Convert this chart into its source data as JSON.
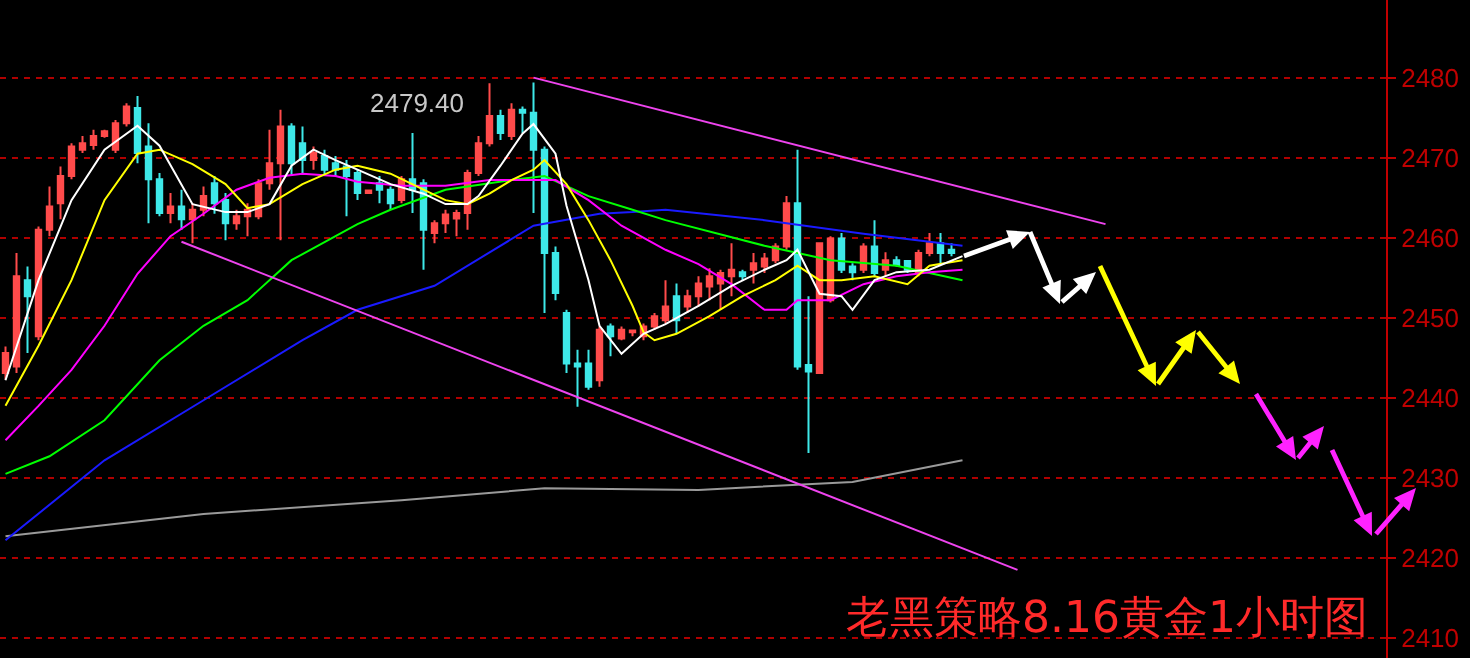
{
  "chart_data": {
    "type": "candlestick",
    "title": "老黑策略8.16黄金1小时图",
    "categories": [
      null,
      null,
      null,
      null,
      null,
      null,
      null,
      null,
      null,
      null,
      null,
      null,
      null,
      null,
      null,
      null,
      null,
      null,
      null,
      null,
      null,
      null,
      null,
      null,
      null,
      null,
      null,
      null,
      null,
      null,
      null,
      null,
      null,
      null,
      null,
      null,
      null,
      null,
      null,
      null,
      null,
      null,
      null,
      null,
      null,
      null,
      null,
      null,
      null,
      null,
      null,
      null,
      null,
      null,
      null,
      null,
      null,
      null,
      null,
      null,
      null,
      null,
      null,
      null,
      null,
      null,
      null,
      null,
      null,
      null,
      null,
      null,
      null,
      null,
      null,
      null,
      null,
      null,
      null,
      null,
      null,
      null,
      null,
      null,
      null,
      null,
      null,
      null,
      null,
      null,
      null,
      null,
      null,
      null,
      null,
      null,
      null,
      null,
      null,
      null,
      null,
      null,
      null,
      null,
      null,
      null,
      null,
      null,
      null,
      null,
      null,
      null,
      null,
      null,
      null,
      null,
      null,
      null,
      null,
      null,
      null,
      null,
      null,
      null,
      null,
      null
    ],
    "colors": [
      "#ff4b4b",
      "#ff4b4b",
      "#3ee8e8",
      "#ff4b4b",
      "#ff4b4b",
      "#ff4b4b",
      "#ff4b4b",
      "#ff4b4b",
      "#ff4b4b",
      "#ff4b4b",
      "#ff4b4b",
      "#ff4b4b",
      "#3ee8e8",
      "#3ee8e8",
      "#3ee8e8",
      "#ff4b4b",
      "#3ee8e8",
      "#ff4b4b",
      "#ff4b4b",
      "#3ee8e8",
      "#3ee8e8",
      "#ff4b4b",
      "#ff4b4b",
      "#ff4b4b",
      "#ff4b4b",
      "#ff4b4b",
      "#3ee8e8",
      "#3ee8e8",
      "#ff4b4b",
      "#3ee8e8",
      "#3ee8e8",
      "#3ee8e8",
      "#3ee8e8",
      "#ff4b4b",
      "#3ee8e8",
      "#3ee8e8",
      "#ff4b4b",
      "#3ee8e8",
      "#3ee8e8",
      "#ff4b4b",
      "#ff4b4b",
      "#ff4b4b",
      "#ff4b4b",
      "#ff4b4b",
      "#ff4b4b",
      "#3ee8e8",
      "#ff4b4b",
      "#3ee8e8",
      "#3ee8e8",
      "#3ee8e8",
      "#3ee8e8",
      "#3ee8e8",
      "#3ee8e8",
      "#3ee8e8",
      "#ff4b4b",
      "#3ee8e8",
      "#ff4b4b",
      "#ff4b4b",
      "#ff4b4b",
      "#ff4b4b",
      "#ff4b4b",
      "#3ee8e8",
      "#ff4b4b",
      "#ff4b4b",
      "#ff4b4b",
      "#ff4b4b",
      "#ff4b4b",
      "#3ee8e8",
      "#ff4b4b",
      "#ff4b4b",
      "#ff4b4b",
      "#ff4b4b",
      "#3ee8e8",
      "#3ee8e8",
      "#ff4b4b",
      "#ff4b4b",
      "#3ee8e8",
      "#3ee8e8",
      "#ff4b4b",
      "#3ee8e8",
      "#ff4b4b",
      "#3ee8e8",
      "#3ee8e8",
      "#ff4b4b",
      "#ff4b4b",
      "#3ee8e8",
      "#3ee8e8",
      null,
      null,
      null,
      null,
      null,
      null,
      null,
      null,
      null,
      null,
      null,
      null,
      null,
      null,
      null,
      null,
      null,
      null,
      null,
      null,
      null,
      null,
      null,
      null,
      null,
      null,
      null,
      null,
      null,
      null,
      null,
      null,
      null,
      null,
      null,
      null,
      null,
      null,
      null
    ],
    "ohlc": [
      [
        2443.1,
        2446.4,
        2442.3,
        2445.6
      ],
      [
        2443.9,
        2458.1,
        2443.1,
        2455.2
      ],
      [
        2454.7,
        2456.4,
        2445.6,
        2452.7
      ],
      [
        2447.7,
        2461.4,
        2447.2,
        2461
      ],
      [
        2461,
        2466.4,
        2460.2,
        2463.9
      ],
      [
        2464.3,
        2468.9,
        2462.3,
        2467.7
      ],
      [
        2467.7,
        2471.8,
        2467.3,
        2471.4
      ],
      [
        2471,
        2472.7,
        2470.6,
        2471.8
      ],
      [
        2471.6,
        2473.5,
        2471,
        2472.7
      ],
      [
        2472.7,
        2473.5,
        2472.5,
        2473.3
      ],
      [
        2471,
        2474.7,
        2470.6,
        2474.3
      ],
      [
        2474.3,
        2476.8,
        2473.9,
        2476.4
      ],
      [
        2476.2,
        2477.7,
        2469.3,
        2470.6
      ],
      [
        2471.4,
        2474.3,
        2461.8,
        2467.3
      ],
      [
        2467.3,
        2468.1,
        2462.7,
        2463.1
      ],
      [
        2463.1,
        2465.6,
        2461.8,
        2463.9
      ],
      [
        2463.9,
        2466,
        2461,
        2462.3
      ],
      [
        2462.3,
        2464.3,
        2459.3,
        2463.5
      ],
      [
        2463.5,
        2466.4,
        2462.7,
        2465.2
      ],
      [
        2466.8,
        2467.7,
        2463,
        2464.3
      ],
      [
        2464.7,
        2465.6,
        2459.7,
        2461.8
      ],
      [
        2461.8,
        2463.5,
        2461,
        2462.7
      ],
      [
        2462.7,
        2464.3,
        2460.2,
        2463.5
      ],
      [
        2462.7,
        2467.3,
        2462.3,
        2466.8
      ],
      [
        2466.8,
        2473.5,
        2466,
        2469.3
      ],
      [
        2469.3,
        2476,
        2459.7,
        2473.9
      ],
      [
        2473.9,
        2474.3,
        2467.7,
        2469.3
      ],
      [
        2471.8,
        2473.9,
        2468.1,
        2469.7
      ],
      [
        2469.7,
        2471.4,
        2468.5,
        2470.6
      ],
      [
        2470.2,
        2471,
        2467.7,
        2468.5
      ],
      [
        2469.3,
        2470.2,
        2467.7,
        2468.5
      ],
      [
        2468.9,
        2469.7,
        2462.7,
        2467.7
      ],
      [
        2468.1,
        2468.5,
        2464.7,
        2465.6
      ],
      [
        2465.6,
        2466,
        2465.5,
        2465.9
      ],
      [
        2466.8,
        2467.7,
        2464.3,
        2466
      ],
      [
        2466,
        2466.4,
        2463.5,
        2464.3
      ],
      [
        2464.7,
        2467.7,
        2464.3,
        2467.3
      ],
      [
        2467.3,
        2473.1,
        2463.1,
        2466
      ],
      [
        2466.8,
        2467.3,
        2456,
        2461
      ],
      [
        2460.6,
        2462.2,
        2459.3,
        2461.8
      ],
      [
        2461.8,
        2463.5,
        2460.6,
        2462.9
      ],
      [
        2462.4,
        2463.5,
        2460.2,
        2463.1
      ],
      [
        2463.1,
        2468.5,
        2461,
        2468.1
      ],
      [
        2468.1,
        2472.7,
        2467.7,
        2471.8
      ],
      [
        2471.8,
        2479.3,
        2471.4,
        2475.2
      ],
      [
        2475.2,
        2476,
        2472.2,
        2473.1
      ],
      [
        2472.7,
        2476.8,
        2472.2,
        2476
      ],
      [
        2476,
        2476.4,
        2473.1,
        2475.6
      ],
      [
        2475.6,
        2479.4,
        2463.1,
        2471
      ],
      [
        2471,
        2471.4,
        2450.6,
        2458.1
      ],
      [
        2458.1,
        2458.9,
        2452.2,
        2453.1
      ],
      [
        2450.6,
        2451,
        2443.1,
        2444.3
      ],
      [
        2444.3,
        2446,
        2438.9,
        2443.9
      ],
      [
        2444.3,
        2446,
        2441,
        2441.4
      ],
      [
        2442.2,
        2448.9,
        2441.4,
        2448.5
      ],
      [
        2448.9,
        2449.3,
        2445.2,
        2447.7
      ],
      [
        2447.4,
        2448.9,
        2447.2,
        2448.5
      ],
      [
        2448.2,
        2448.5,
        2447.7,
        2448.4
      ],
      [
        2447.7,
        2449.3,
        2447.2,
        2448.9
      ],
      [
        2448.9,
        2450.6,
        2448.5,
        2450.2
      ],
      [
        2449.7,
        2454.7,
        2449.3,
        2451.4
      ],
      [
        2452.7,
        2454.3,
        2448.1,
        2449.7
      ],
      [
        2451.4,
        2453.5,
        2450.6,
        2452.7
      ],
      [
        2452.7,
        2455.2,
        2451.4,
        2454.3
      ],
      [
        2453.9,
        2456.2,
        2452.2,
        2455.2
      ],
      [
        2454.3,
        2456,
        2451,
        2455.6
      ],
      [
        2455.2,
        2459.3,
        2452.7,
        2456
      ],
      [
        2455.7,
        2456,
        2454.7,
        2455.2
      ],
      [
        2456,
        2458.1,
        2454.3,
        2456.8
      ],
      [
        2456.4,
        2458.1,
        2455.6,
        2457.4
      ],
      [
        2457.2,
        2459.3,
        2456.8,
        2458.9
      ],
      [
        2458.9,
        2465.2,
        2458.5,
        2464.3
      ],
      [
        2464.3,
        2471,
        2443.5,
        2443.9
      ],
      [
        2444.1,
        2452.7,
        2433.1,
        2443.3
      ],
      [
        2443.1,
        2459.3,
        2443.1,
        2459.3
      ],
      [
        2452.2,
        2460.2,
        2451.9,
        2459.9
      ],
      [
        2459.9,
        2460.6,
        2455.6,
        2456
      ],
      [
        2456.4,
        2456.8,
        2454.7,
        2455.7
      ],
      [
        2456,
        2459.3,
        2455.6,
        2458.9
      ],
      [
        2458.9,
        2462.2,
        2455.2,
        2455.6
      ],
      [
        2456,
        2458.2,
        2455.2,
        2457.2
      ],
      [
        2457.2,
        2457.7,
        2456.4,
        2456.6
      ],
      [
        2457.1,
        2457.2,
        2455.6,
        2456
      ],
      [
        2455.7,
        2458.5,
        2455.2,
        2458.1
      ],
      [
        2458.1,
        2460.6,
        2457.7,
        2459.3
      ],
      [
        2459.3,
        2460.6,
        2456.8,
        2458.1
      ],
      [
        2458.5,
        2459.3,
        2457.7,
        2458.1
      ],
      null,
      null,
      null,
      null,
      null,
      null,
      null,
      null,
      null,
      null,
      null,
      null,
      null,
      null,
      null,
      null,
      null,
      null,
      null,
      null,
      null,
      null,
      null,
      null,
      null,
      null,
      null,
      null,
      null,
      null,
      null,
      null,
      null,
      null,
      null,
      null,
      null,
      null,
      null
    ],
    "series": [
      {
        "type": "line",
        "color": "#9a9a9a",
        "values": [
          2422.7,
          null,
          null,
          null,
          null,
          null,
          null,
          null,
          null,
          null,
          null,
          null,
          null,
          null,
          null,
          null,
          null,
          null,
          2425.5,
          null,
          null,
          null,
          null,
          null,
          null,
          null,
          null,
          null,
          null,
          null,
          null,
          null,
          null,
          null,
          null,
          null,
          2427.2,
          null,
          null,
          null,
          null,
          null,
          null,
          null,
          null,
          null,
          null,
          null,
          null,
          2428.7,
          null,
          null,
          null,
          null,
          null,
          null,
          null,
          null,
          null,
          null,
          null,
          null,
          null,
          2428.5,
          null,
          null,
          null,
          null,
          null,
          null,
          null,
          null,
          null,
          null,
          null,
          null,
          null,
          2429.5,
          null,
          null,
          null,
          null,
          null,
          null,
          null,
          null,
          null,
          2432.2,
          null,
          null,
          null,
          null,
          null,
          null,
          null,
          null,
          null,
          null,
          null,
          null,
          null,
          null,
          null,
          null,
          null,
          null,
          null,
          null,
          null,
          null,
          null,
          null,
          null,
          null,
          null,
          null,
          null,
          null,
          null,
          null,
          null,
          null,
          null,
          null,
          null,
          null
        ]
      },
      {
        "type": "line",
        "color": "#1a1aff",
        "values": [
          2422.2,
          null,
          null,
          null,
          null,
          null,
          null,
          null,
          null,
          2432.2,
          null,
          null,
          null,
          null,
          null,
          null,
          null,
          null,
          2439.7,
          null,
          null,
          null,
          null,
          null,
          null,
          null,
          null,
          2447.2,
          null,
          null,
          null,
          null,
          2451,
          null,
          null,
          null,
          null,
          null,
          null,
          2454,
          null,
          null,
          null,
          null,
          null,
          null,
          null,
          null,
          2461.5,
          null,
          null,
          null,
          null,
          null,
          2463,
          null,
          null,
          2463.2,
          null,
          null,
          2463.5,
          null,
          null,
          null,
          null,
          null,
          null,
          null,
          null,
          2462.2,
          null,
          null,
          null,
          null,
          null,
          null,
          null,
          null,
          2460.5,
          null,
          null,
          null,
          null,
          null,
          null,
          null,
          null,
          2459,
          null,
          null,
          null,
          null,
          null,
          null,
          null,
          null,
          null,
          null,
          null,
          null,
          null,
          null,
          null,
          null,
          null,
          null,
          null,
          null,
          null,
          null,
          null,
          null,
          null,
          null,
          null,
          null,
          null,
          null,
          null,
          null,
          null,
          null,
          null,
          null,
          null,
          null
        ]
      },
      {
        "type": "line",
        "color": "#00ff00",
        "values": [
          2430.5,
          null,
          null,
          null,
          2432.7,
          null,
          null,
          null,
          null,
          2437.2,
          null,
          null,
          null,
          null,
          2444.7,
          null,
          null,
          null,
          2449,
          null,
          null,
          null,
          2452.2,
          null,
          null,
          null,
          2457.2,
          null,
          null,
          null,
          null,
          null,
          2461.7,
          null,
          null,
          2463.5,
          null,
          null,
          null,
          null,
          2466,
          null,
          null,
          null,
          null,
          null,
          2467.2,
          null,
          null,
          2467.7,
          null,
          null,
          null,
          2465.2,
          null,
          null,
          null,
          2463.5,
          null,
          null,
          2462.2,
          null,
          null,
          null,
          null,
          null,
          null,
          null,
          null,
          2459,
          null,
          null,
          null,
          null,
          null,
          2457.2,
          null,
          null,
          null,
          null,
          null,
          2456.5,
          null,
          null,
          null,
          null,
          null,
          2454.7,
          null,
          null,
          null,
          null,
          null,
          null,
          null,
          null,
          null,
          null,
          null,
          null,
          null,
          null,
          null,
          null,
          null,
          null,
          null,
          null,
          null,
          null,
          null,
          null,
          null,
          null,
          null,
          null,
          null,
          null,
          null,
          null,
          null,
          null,
          null,
          null,
          null,
          null
        ]
      },
      {
        "type": "line",
        "color": "#ff00ff",
        "values": [
          2434.7,
          null,
          null,
          2439,
          null,
          null,
          2443.5,
          null,
          null,
          2449,
          null,
          null,
          2455.5,
          null,
          null,
          2460.2,
          null,
          null,
          2463,
          null,
          null,
          2466,
          null,
          null,
          2467.5,
          null,
          null,
          2468,
          null,
          null,
          2467.7,
          null,
          2467,
          null,
          null,
          null,
          2466.5,
          null,
          null,
          null,
          2466.5,
          null,
          null,
          null,
          2467.2,
          null,
          null,
          null,
          2467.2,
          null,
          2467.2,
          null,
          null,
          2464.7,
          null,
          null,
          2461.5,
          null,
          null,
          null,
          2458.5,
          null,
          null,
          2456.7,
          null,
          null,
          2454.2,
          null,
          null,
          2451,
          null,
          2451,
          2452.2,
          null,
          null,
          2452.2,
          null,
          null,
          2454.2,
          null,
          null,
          2455.2,
          null,
          null,
          2455.7,
          null,
          null,
          2456,
          null,
          null,
          null,
          null,
          null,
          null,
          null,
          null,
          null,
          null,
          null,
          null,
          null,
          null,
          null,
          null,
          null,
          null,
          null,
          null,
          null,
          null,
          null,
          null,
          null,
          null,
          null,
          null,
          null,
          null,
          null,
          null,
          null,
          null,
          null,
          null,
          null,
          null
        ]
      },
      {
        "type": "line",
        "color": "#ffff00",
        "values": [
          2439,
          null,
          null,
          2446.5,
          null,
          null,
          2454.7,
          null,
          null,
          2464.7,
          null,
          null,
          2470.5,
          null,
          2471,
          null,
          null,
          2469.2,
          null,
          null,
          2466.7,
          null,
          2463.7,
          null,
          2464.2,
          null,
          null,
          2466.7,
          null,
          null,
          2468.5,
          null,
          2469,
          null,
          null,
          2468,
          null,
          null,
          2466,
          null,
          2464.7,
          null,
          2464.2,
          null,
          2465.5,
          null,
          2467.2,
          null,
          2468.5,
          2469.7,
          null,
          2466.7,
          null,
          2462.2,
          null,
          2457.2,
          null,
          2451.5,
          2448.2,
          2447.2,
          null,
          2448,
          null,
          null,
          2450.2,
          null,
          null,
          2452.7,
          null,
          null,
          2454.7,
          null,
          2456.5,
          null,
          2454.7,
          null,
          2454.7,
          null,
          null,
          2455.2,
          null,
          null,
          2454.2,
          null,
          2456.5,
          null,
          null,
          2457.2,
          null,
          null,
          null,
          null,
          null,
          null,
          null,
          null,
          null,
          null,
          null,
          null,
          null,
          null,
          null,
          null,
          null,
          null,
          null,
          null,
          null,
          null,
          null,
          null,
          null,
          null,
          null,
          null,
          null,
          null,
          null,
          null,
          null,
          null,
          null,
          null,
          null,
          null
        ]
      },
      {
        "type": "line",
        "color": "#ffffff",
        "values": [
          2442.2,
          null,
          null,
          2454.7,
          null,
          null,
          2464.7,
          null,
          null,
          2471,
          null,
          null,
          2474,
          null,
          2471.5,
          null,
          null,
          2464.2,
          null,
          null,
          2463.2,
          null,
          2463.2,
          null,
          2464.2,
          null,
          2469,
          null,
          2471,
          null,
          2469.7,
          null,
          2468.5,
          null,
          null,
          2466.7,
          null,
          null,
          2465.5,
          null,
          2464.2,
          null,
          2464.2,
          2465.2,
          null,
          2469,
          null,
          2473,
          2474.2,
          null,
          2470.5,
          2464,
          null,
          2454.7,
          2449,
          null,
          2445.5,
          null,
          2448,
          null,
          2449.2,
          null,
          null,
          2451.5,
          null,
          null,
          2454,
          null,
          null,
          2456,
          null,
          2457.2,
          2458.5,
          null,
          2453,
          null,
          2452.7,
          2451,
          null,
          2454.7,
          null,
          2455.7,
          null,
          null,
          2456,
          null,
          null,
          2457.7,
          null,
          null,
          null,
          null,
          null,
          null,
          null,
          null,
          null,
          null,
          null,
          null,
          null,
          null,
          null,
          null,
          null,
          null,
          null,
          null,
          null,
          null,
          null,
          null,
          null,
          null,
          null,
          null,
          null,
          null,
          null,
          null,
          null,
          null,
          null,
          null,
          null,
          null
        ]
      },
      {
        "type": "line",
        "color": "#ee44ee",
        "values": [
          null,
          null,
          null,
          null,
          null,
          null,
          null,
          null,
          null,
          null,
          null,
          null,
          null,
          null,
          null,
          null,
          null,
          null,
          null,
          null,
          null,
          null,
          null,
          null,
          null,
          null,
          null,
          null,
          null,
          null,
          null,
          null,
          null,
          null,
          null,
          null,
          null,
          null,
          null,
          null,
          null,
          null,
          null,
          null,
          null,
          null,
          null,
          null,
          2480,
          null,
          null,
          null,
          null,
          null,
          null,
          null,
          null,
          null,
          null,
          null,
          null,
          null,
          null,
          null,
          null,
          null,
          null,
          null,
          null,
          null,
          null,
          null,
          null,
          null,
          null,
          null,
          null,
          null,
          null,
          null,
          null,
          null,
          null,
          null,
          null,
          null,
          null,
          null,
          null,
          null,
          null,
          null,
          null,
          null,
          null,
          null,
          null,
          null,
          null,
          null,
          2461.7,
          null,
          null,
          null,
          null,
          null,
          null,
          null,
          null,
          null,
          null,
          null,
          null,
          null,
          null,
          null,
          null,
          null,
          null,
          null,
          null,
          null,
          null,
          null,
          null,
          null
        ]
      },
      {
        "type": "line",
        "color": "#ee44ee",
        "values": [
          null,
          null,
          null,
          null,
          null,
          null,
          null,
          null,
          null,
          null,
          null,
          null,
          null,
          null,
          null,
          null,
          2459.5,
          null,
          null,
          null,
          null,
          null,
          null,
          null,
          null,
          null,
          null,
          null,
          null,
          null,
          null,
          null,
          null,
          null,
          null,
          null,
          null,
          null,
          null,
          null,
          null,
          null,
          null,
          null,
          null,
          null,
          null,
          null,
          null,
          null,
          null,
          null,
          null,
          null,
          null,
          null,
          null,
          null,
          null,
          null,
          null,
          null,
          null,
          null,
          null,
          null,
          null,
          null,
          null,
          null,
          null,
          null,
          null,
          null,
          null,
          null,
          null,
          null,
          null,
          null,
          null,
          null,
          null,
          null,
          null,
          null,
          null,
          null,
          null,
          null,
          null,
          null,
          2418.5,
          null,
          null,
          null,
          null,
          null,
          null,
          null,
          null,
          null,
          null,
          null,
          null,
          null,
          null,
          null,
          null,
          null,
          null,
          null,
          null,
          null,
          null,
          null,
          null,
          null,
          null,
          null,
          null,
          null,
          null,
          null,
          null,
          null
        ]
      }
    ],
    "annotations": [
      "2479.40"
    ],
    "ylim": [
      2407.5,
      2489.7
    ],
    "yticks": [
      2410,
      2420,
      2430,
      2440,
      2450,
      2460,
      2470,
      2480
    ],
    "grid": "y",
    "tick_labels": "y"
  }
}
